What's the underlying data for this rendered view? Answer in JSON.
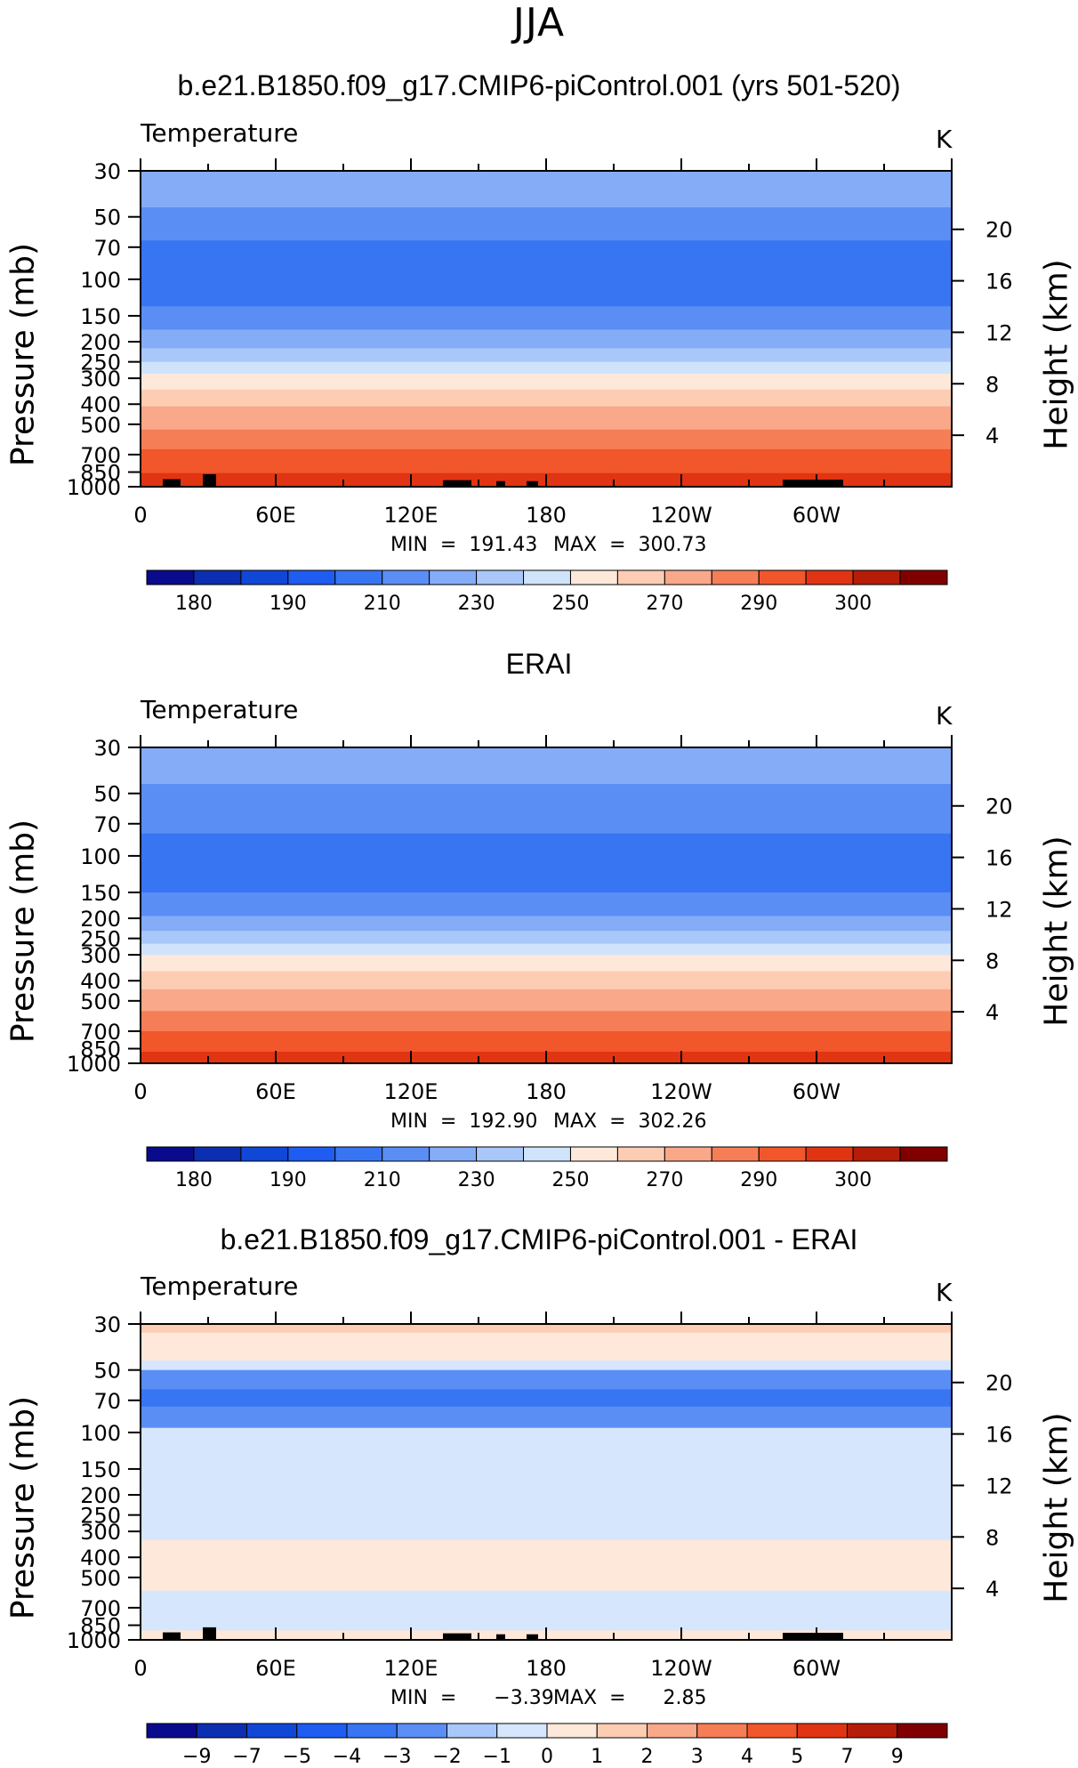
{
  "suptitle": "JJA",
  "colors": {
    "temp_levels": [
      175,
      180,
      185,
      190,
      200,
      210,
      220,
      230,
      240,
      250,
      260,
      270,
      280,
      290,
      295,
      300
    ],
    "palette": [
      "#0a0a8c",
      "#0b2fb0",
      "#1047d6",
      "#1e5cf2",
      "#3875f2",
      "#5a8ef5",
      "#85acf7",
      "#a9c7f9",
      "#cfe3fb",
      "#fde8da",
      "#fcccb3",
      "#f9a88a",
      "#f67e57",
      "#f2562b",
      "#e13412",
      "#b51d08",
      "#800000"
    ],
    "diff_levels": [
      -9,
      -7,
      -5,
      -4,
      -3,
      -2,
      -1,
      0,
      1,
      2,
      3,
      4,
      5,
      7,
      9
    ],
    "land_mask": "#000000"
  },
  "panels": [
    {
      "title": "b.e21.B1850.f09_g17.CMIP6-piControl.001 (yrs 501-520)",
      "field_label": "Temperature",
      "units": "K",
      "min_label": "MIN  =  191.43",
      "max_label": "MAX  =  300.73",
      "ylabel_left": "Pressure (mb)",
      "ylabel_right": "Height (km)",
      "colorbar_labels": [
        "180",
        "190",
        "210",
        "230",
        "250",
        "270",
        "290",
        "300"
      ]
    },
    {
      "title": "ERAI",
      "field_label": "Temperature",
      "units": "K",
      "min_label": "MIN  =  192.90",
      "max_label": "MAX  =  302.26",
      "ylabel_left": "Pressure (mb)",
      "ylabel_right": "Height (km)",
      "colorbar_labels": [
        "180",
        "190",
        "210",
        "230",
        "250",
        "270",
        "290",
        "300"
      ]
    },
    {
      "title": "b.e21.B1850.f09_g17.CMIP6-piControl.001 - ERAI",
      "field_label": "Temperature",
      "units": "K",
      "min_label": "MIN  =      −3.39",
      "max_label": "MAX  =      2.85",
      "ylabel_left": "Pressure (mb)",
      "ylabel_right": "Height (km)",
      "colorbar_labels": [
        "−9",
        "−7",
        "−5",
        "−4",
        "−3",
        "−2",
        "−1",
        "0",
        "1",
        "2",
        "3",
        "4",
        "5",
        "7",
        "9"
      ]
    }
  ],
  "chart_data": [
    {
      "type": "heatmap",
      "title": "b.e21.B1850.f09_g17.CMIP6-piControl.001 (yrs 501-520)",
      "xlabel": "",
      "ylabel": "Pressure (mb)",
      "ylabel_right": "Height (km)",
      "x_ticks": [
        "0",
        "60E",
        "120E",
        "180",
        "120W",
        "60W"
      ],
      "y_ticks_pressure": [
        "30",
        "50",
        "70",
        "100",
        "150",
        "200",
        "250",
        "300",
        "400",
        "500",
        "700",
        "850",
        "1000"
      ],
      "y_ticks_height": [
        "20",
        "16",
        "12",
        "8",
        "4"
      ],
      "xlim": [
        0,
        360
      ],
      "ylim": [
        1000,
        30
      ],
      "y_scale": "log",
      "bands": [
        {
          "p_top": 30,
          "p_bottom": 45,
          "value": 215
        },
        {
          "p_top": 45,
          "p_bottom": 65,
          "value": 205
        },
        {
          "p_top": 65,
          "p_bottom": 135,
          "value": 195
        },
        {
          "p_top": 135,
          "p_bottom": 175,
          "value": 205
        },
        {
          "p_top": 175,
          "p_bottom": 215,
          "value": 215
        },
        {
          "p_top": 215,
          "p_bottom": 250,
          "value": 225
        },
        {
          "p_top": 250,
          "p_bottom": 285,
          "value": 235
        },
        {
          "p_top": 285,
          "p_bottom": 340,
          "value": 245
        },
        {
          "p_top": 340,
          "p_bottom": 410,
          "value": 255
        },
        {
          "p_top": 410,
          "p_bottom": 530,
          "value": 265
        },
        {
          "p_top": 530,
          "p_bottom": 660,
          "value": 275
        },
        {
          "p_top": 660,
          "p_bottom": 860,
          "value": 285
        },
        {
          "p_top": 860,
          "p_bottom": 1000,
          "value": 292
        }
      ],
      "min": 191.43,
      "max": 300.73,
      "units": "K"
    },
    {
      "type": "heatmap",
      "title": "ERAI",
      "ylabel": "Pressure (mb)",
      "ylabel_right": "Height (km)",
      "x_ticks": [
        "0",
        "60E",
        "120E",
        "180",
        "120W",
        "60W"
      ],
      "y_ticks_pressure": [
        "30",
        "50",
        "70",
        "100",
        "150",
        "200",
        "250",
        "300",
        "400",
        "500",
        "700",
        "850",
        "1000"
      ],
      "y_ticks_height": [
        "20",
        "16",
        "12",
        "8",
        "4"
      ],
      "xlim": [
        0,
        360
      ],
      "ylim": [
        1000,
        30
      ],
      "y_scale": "log",
      "bands": [
        {
          "p_top": 30,
          "p_bottom": 45,
          "value": 215
        },
        {
          "p_top": 45,
          "p_bottom": 78,
          "value": 205
        },
        {
          "p_top": 78,
          "p_bottom": 150,
          "value": 195
        },
        {
          "p_top": 150,
          "p_bottom": 195,
          "value": 205
        },
        {
          "p_top": 195,
          "p_bottom": 230,
          "value": 215
        },
        {
          "p_top": 230,
          "p_bottom": 265,
          "value": 225
        },
        {
          "p_top": 265,
          "p_bottom": 300,
          "value": 235
        },
        {
          "p_top": 300,
          "p_bottom": 360,
          "value": 245
        },
        {
          "p_top": 360,
          "p_bottom": 440,
          "value": 255
        },
        {
          "p_top": 440,
          "p_bottom": 560,
          "value": 265
        },
        {
          "p_top": 560,
          "p_bottom": 700,
          "value": 275
        },
        {
          "p_top": 700,
          "p_bottom": 880,
          "value": 285
        },
        {
          "p_top": 880,
          "p_bottom": 1000,
          "value": 292
        }
      ],
      "min": 192.9,
      "max": 302.26,
      "units": "K"
    },
    {
      "type": "heatmap",
      "title": "b.e21.B1850.f09_g17.CMIP6-piControl.001 - ERAI",
      "ylabel": "Pressure (mb)",
      "ylabel_right": "Height (km)",
      "x_ticks": [
        "0",
        "60E",
        "120E",
        "180",
        "120W",
        "60W"
      ],
      "y_ticks_pressure": [
        "30",
        "50",
        "70",
        "100",
        "150",
        "200",
        "250",
        "300",
        "400",
        "500",
        "700",
        "850",
        "1000"
      ],
      "y_ticks_height": [
        "20",
        "16",
        "12",
        "8",
        "4"
      ],
      "xlim": [
        0,
        360
      ],
      "ylim": [
        1000,
        30
      ],
      "y_scale": "log",
      "bands": [
        {
          "p_top": 30,
          "p_bottom": 33,
          "value": 1.5
        },
        {
          "p_top": 33,
          "p_bottom": 45,
          "value": 0.5
        },
        {
          "p_top": 45,
          "p_bottom": 50,
          "value": -0.5
        },
        {
          "p_top": 50,
          "p_bottom": 62,
          "value": -2.5
        },
        {
          "p_top": 62,
          "p_bottom": 75,
          "value": -3.5
        },
        {
          "p_top": 75,
          "p_bottom": 95,
          "value": -2.5
        },
        {
          "p_top": 95,
          "p_bottom": 330,
          "value": -0.5
        },
        {
          "p_top": 330,
          "p_bottom": 580,
          "value": 0.5
        },
        {
          "p_top": 580,
          "p_bottom": 900,
          "value": -0.5
        },
        {
          "p_top": 900,
          "p_bottom": 1000,
          "value": 0.5
        }
      ],
      "min": -3.39,
      "max": 2.85,
      "units": "K"
    }
  ]
}
